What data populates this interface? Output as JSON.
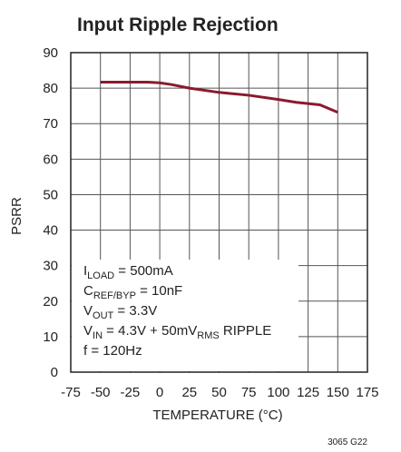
{
  "chart_data": {
    "type": "line",
    "title": "Input Ripple Rejection",
    "xlabel": "TEMPERATURE (°C)",
    "ylabel": "PSRR",
    "footnote": "3065 G22",
    "x": [
      -50,
      -25,
      -10,
      0,
      10,
      25,
      50,
      75,
      100,
      115,
      135,
      150
    ],
    "series": [
      {
        "color": "#8b1a2e",
        "values": [
          81.7,
          81.7,
          81.7,
          81.5,
          81.0,
          80.0,
          78.8,
          78.0,
          76.8,
          76.0,
          75.3,
          73.2
        ]
      }
    ],
    "xlim": [
      -75,
      175
    ],
    "xticks": [
      -75,
      -50,
      -25,
      0,
      25,
      50,
      75,
      100,
      125,
      150,
      175
    ],
    "ylim": [
      0,
      90
    ],
    "yticks": [
      0,
      10,
      20,
      30,
      40,
      50,
      60,
      70,
      80,
      90
    ],
    "grid": true,
    "annotation": [
      [
        "I",
        "LOAD",
        " = 500mA"
      ],
      [
        "C",
        "REF/BYP",
        " = 10nF"
      ],
      [
        "V",
        "OUT",
        " = 3.3V"
      ],
      [
        "V",
        "IN",
        " = 4.3V + 50mV",
        "RMS",
        " RIPPLE"
      ],
      [
        "f = 120Hz"
      ]
    ]
  }
}
